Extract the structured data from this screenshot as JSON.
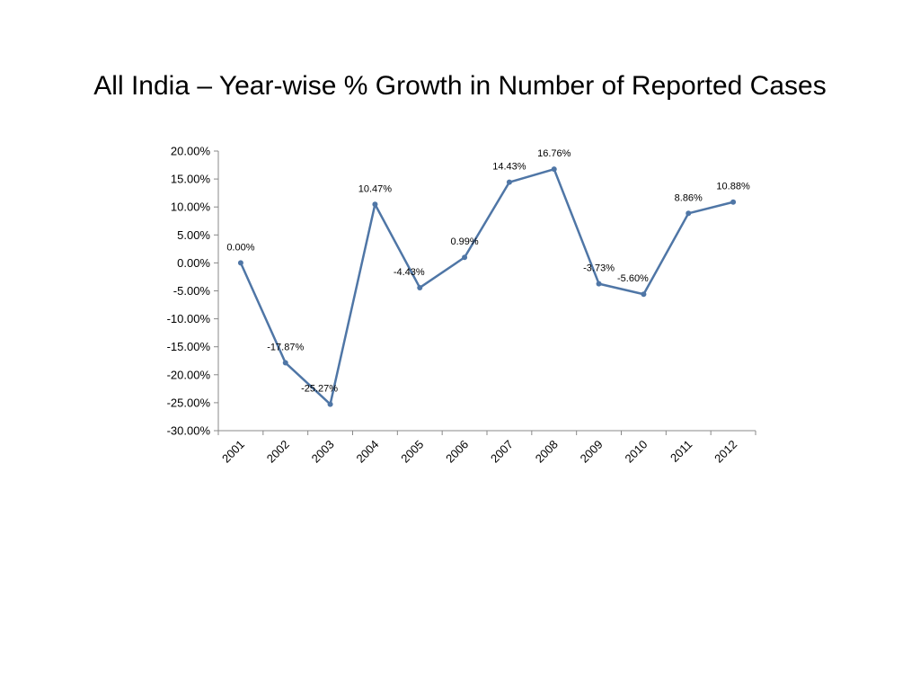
{
  "slide": {
    "title": "All India – Year-wise % Growth in Number of Reported Cases"
  },
  "chart_data": {
    "type": "line",
    "title": "",
    "xlabel": "",
    "ylabel": "",
    "categories": [
      "2001",
      "2002",
      "2003",
      "2004",
      "2005",
      "2006",
      "2007",
      "2008",
      "2009",
      "2010",
      "2011",
      "2012"
    ],
    "series": [
      {
        "values": [
          0.0,
          -17.87,
          -25.27,
          10.47,
          -4.43,
          0.99,
          14.43,
          16.76,
          -3.73,
          -5.6,
          8.86,
          10.88
        ],
        "labels": [
          "0.00%",
          "-17.87%",
          "-25.27%",
          "10.47%",
          "-4.43%",
          "0.99%",
          "14.43%",
          "16.76%",
          "-3.73%",
          "-5.60%",
          "8.86%",
          "10.88%"
        ],
        "color": "#4F76A6"
      }
    ],
    "ylim": [
      -30,
      20
    ],
    "yticks": [
      "20.00%",
      "15.00%",
      "10.00%",
      "5.00%",
      "0.00%",
      "-5.00%",
      "-10.00%",
      "-15.00%",
      "-20.00%",
      "-25.00%",
      "-30.00%"
    ],
    "ytick_values": [
      20,
      15,
      10,
      5,
      0,
      -5,
      -10,
      -15,
      -20,
      -25,
      -30
    ],
    "grid": false,
    "legend": "none",
    "axis_color": "#888888"
  }
}
